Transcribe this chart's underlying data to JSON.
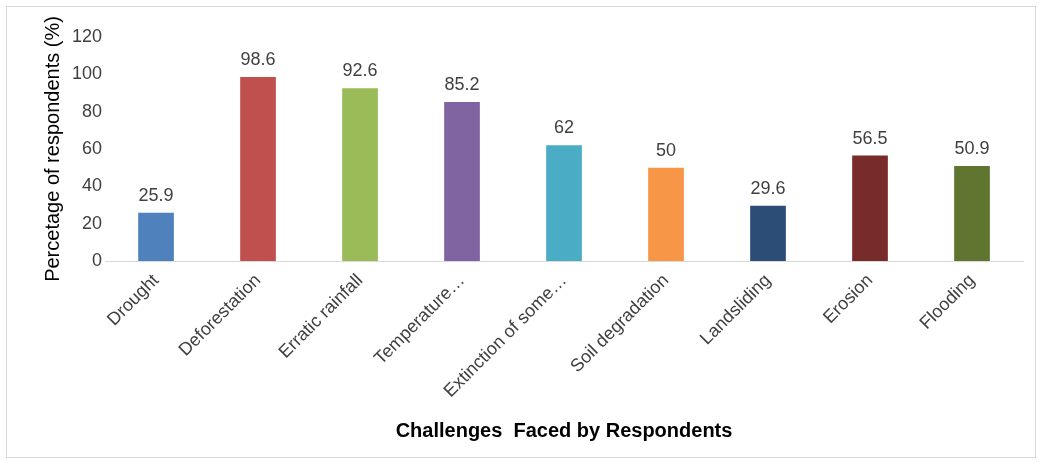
{
  "chart_data": {
    "type": "bar",
    "xlabel": "Challenges  Faced by Respondents",
    "ylabel": "Percetage of respondents (%)",
    "categories": [
      "Drought",
      "Deforestation",
      "Erratic rainfall",
      "Temperature…",
      "Extinction of some…",
      "Soil degradation",
      "Landsliding",
      "Erosion",
      "Flooding"
    ],
    "values": [
      25.9,
      98.6,
      92.6,
      85.2,
      62,
      50,
      29.6,
      56.5,
      50.9
    ],
    "colors": [
      "#4f81bd",
      "#c0504d",
      "#9bbb59",
      "#8064a2",
      "#4bacc6",
      "#f79646",
      "#2c4d75",
      "#772c2a",
      "#5f7530"
    ],
    "ylim": [
      0,
      120
    ],
    "yticks": [
      0,
      20,
      40,
      60,
      80,
      100,
      120
    ],
    "grid": false,
    "legend": false,
    "data_labels": true
  }
}
